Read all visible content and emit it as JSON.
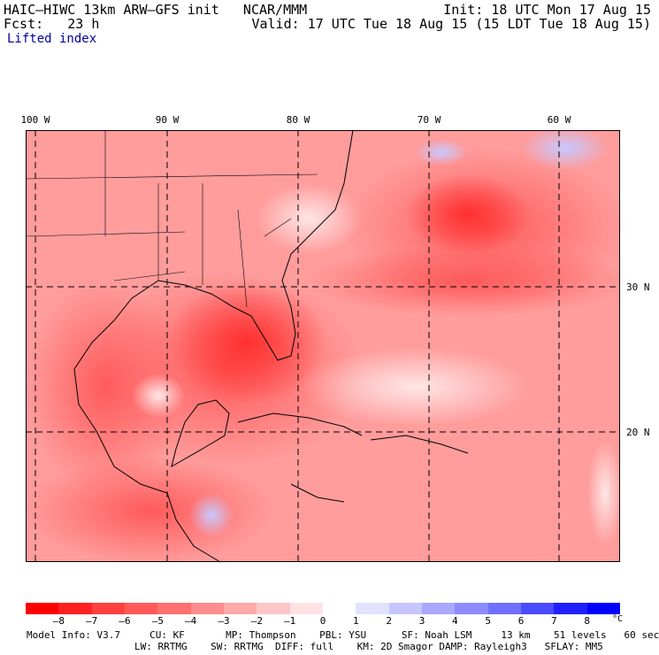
{
  "header": {
    "model": "HAIC–HIWC 13km ARW–GFS init   NCAR/MMM",
    "init": "Init: 18 UTC Mon 17 Aug 15",
    "fcst": "Fcst:   23 h",
    "valid": "Valid: 17 UTC Tue 18 Aug 15 (15 LDT Tue 18 Aug 15)",
    "field": "Lifted index"
  },
  "axes": {
    "lon_labels": [
      "100 W",
      "90 W",
      "80 W",
      "70 W",
      "60 W"
    ],
    "lat_labels": [
      "30 N",
      "20 N"
    ]
  },
  "legend": {
    "ticks": [
      "–8",
      "–7",
      "–6",
      "–5",
      "–4",
      "–3",
      "–2",
      "–1",
      "0",
      "1",
      "2",
      "3",
      "4",
      "5",
      "6",
      "7",
      "8"
    ],
    "unit": "°C",
    "colors": [
      "#ff0000",
      "#ff2020",
      "#ff4040",
      "#ff5a5a",
      "#ff7070",
      "#ff8c8c",
      "#ffa8a8",
      "#ffc6c6",
      "#ffe2e2",
      "#ffffff",
      "#e2e2ff",
      "#c6c6ff",
      "#a8a8ff",
      "#8c8cff",
      "#7070ff",
      "#4a4aff",
      "#2020ff",
      "#0000ff"
    ]
  },
  "info": {
    "line1": "Model Info: V3.7     CU: KF       MP: Thompson    PBL: YSU      SF: Noah LSM     13 km    51 levels   60 sec",
    "line2": "LW: RRTMG    SW: RRTMG  DIFF: full    KM: 2D Smagor DAMP: Rayleigh3   SFLAY: MM5"
  }
}
